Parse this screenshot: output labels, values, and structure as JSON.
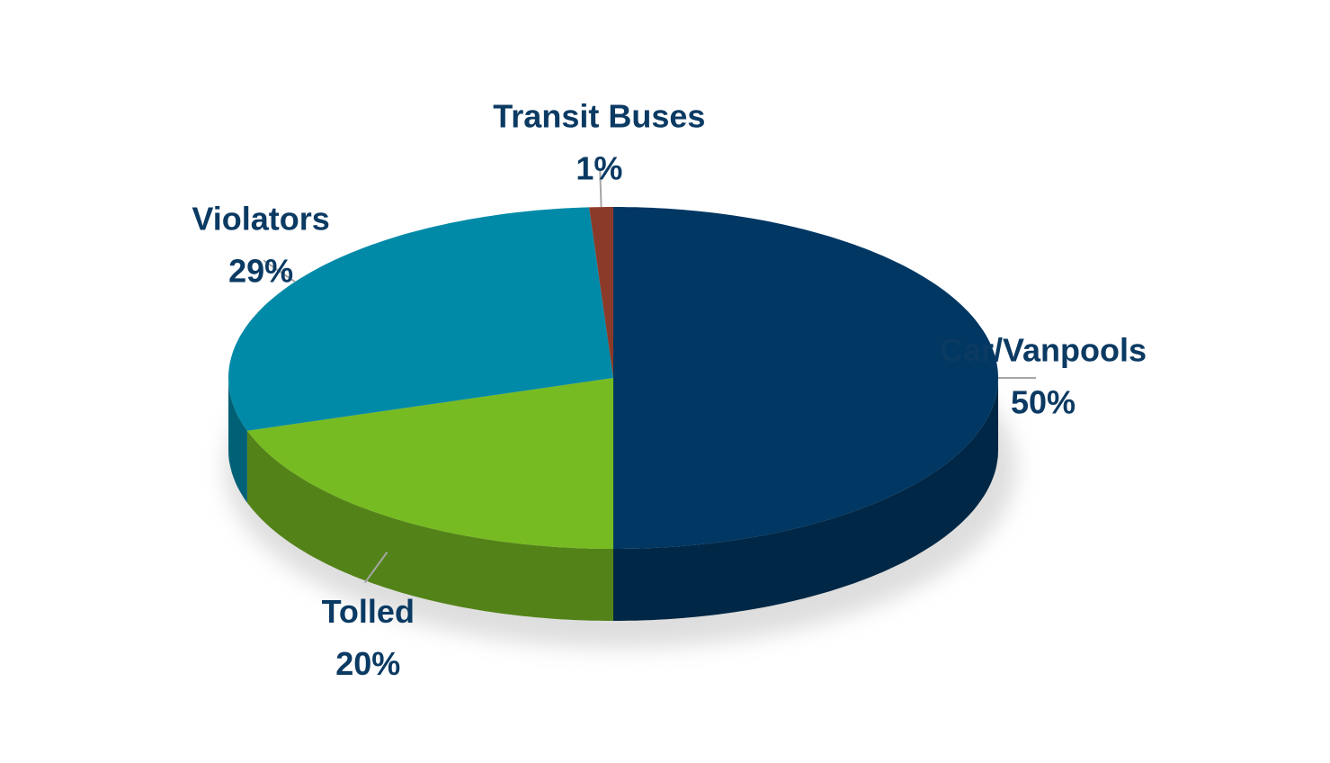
{
  "chart_data": {
    "type": "pie",
    "categories": [
      "Car/Vanpools",
      "Tolled",
      "Violators",
      "Transit Buses"
    ],
    "values": [
      50,
      20,
      29,
      1
    ],
    "value_labels": [
      "50%",
      "20%",
      "29%",
      "1%"
    ],
    "colors": [
      "#003763",
      "#77bb22",
      "#008aa8",
      "#8b3a2a"
    ]
  }
}
